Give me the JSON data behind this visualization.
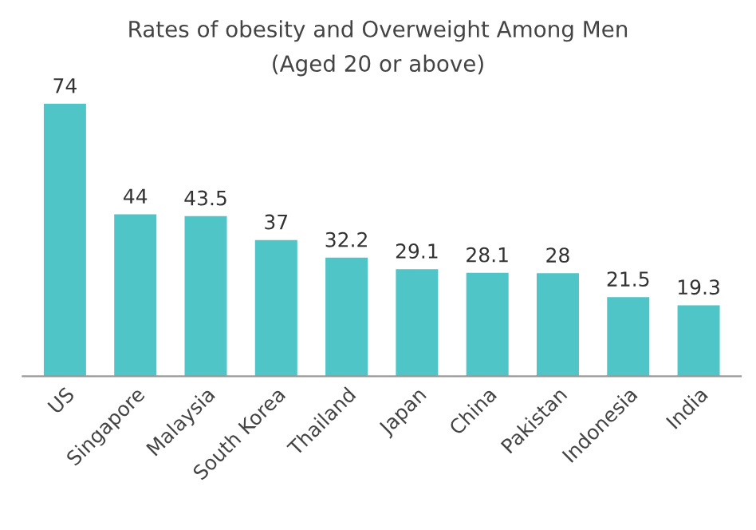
{
  "chart_data": {
    "type": "bar",
    "title": "Rates of obesity and Overweight Among Men",
    "subtitle": "(Aged 20 or above)",
    "categories": [
      "US",
      "Singapore",
      "Malaysia",
      "South Korea",
      "Thailand",
      "Japan",
      "China",
      "Pakistan",
      "Indonesia",
      "India"
    ],
    "values": [
      74,
      44,
      43.5,
      37,
      32.2,
      29.1,
      28.1,
      28,
      21.5,
      19.3
    ],
    "color": "#4fc5c7",
    "data_labels": true,
    "grid": false,
    "legend": false
  }
}
